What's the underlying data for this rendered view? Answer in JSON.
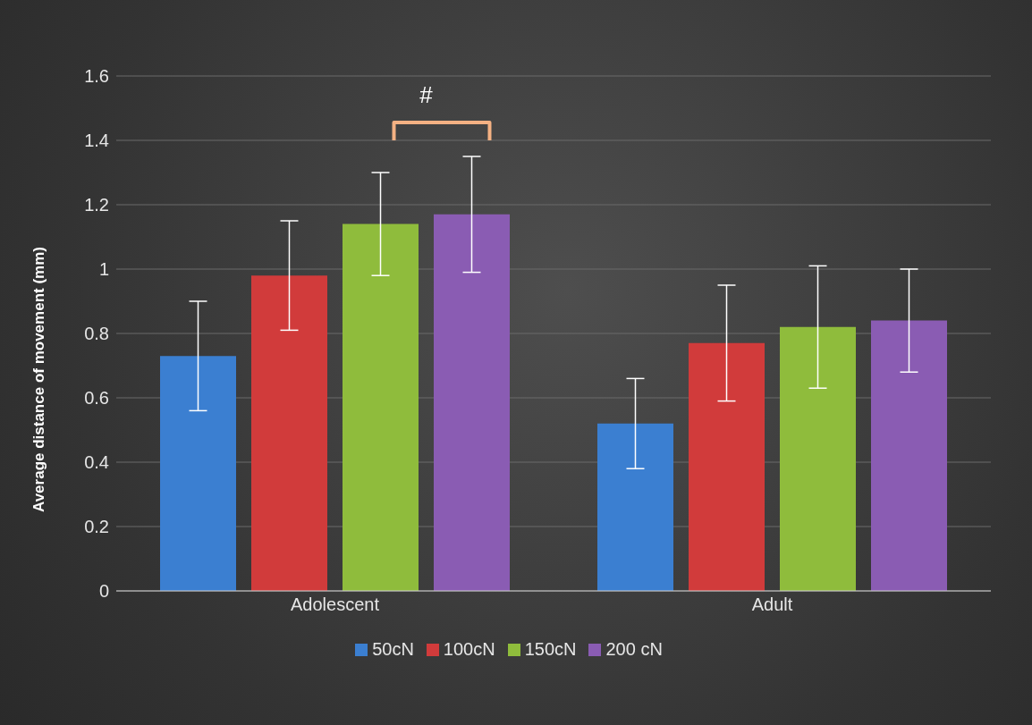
{
  "chart_data": {
    "type": "bar",
    "ylabel": "Average distance of  movement (mm)",
    "categories": [
      "Adolescent",
      "Adult"
    ],
    "ylim": [
      0,
      1.6
    ],
    "yticks": [
      0,
      0.2,
      0.4,
      0.6,
      0.8,
      1,
      1.2,
      1.4,
      1.6
    ],
    "grid": "y",
    "legend": "bottom",
    "series": [
      {
        "name": "50cN",
        "color": "#3b7fd1",
        "values": [
          0.73,
          0.52
        ],
        "errors": [
          [
            0.56,
            0.9
          ],
          [
            0.38,
            0.66
          ]
        ]
      },
      {
        "name": "100cN",
        "color": "#d13b3b",
        "values": [
          0.98,
          0.77
        ],
        "errors": [
          [
            0.81,
            1.15
          ],
          [
            0.59,
            0.95
          ]
        ]
      },
      {
        "name": "150cN",
        "color": "#8fbc3c",
        "values": [
          1.14,
          0.82
        ],
        "errors": [
          [
            0.98,
            1.3
          ],
          [
            0.63,
            1.01
          ]
        ]
      },
      {
        "name": "200 cN",
        "color": "#8a5cb3",
        "values": [
          1.17,
          0.84
        ],
        "errors": [
          [
            0.99,
            1.35
          ],
          [
            0.68,
            1.0
          ]
        ]
      }
    ],
    "annotations": [
      "#"
    ]
  }
}
